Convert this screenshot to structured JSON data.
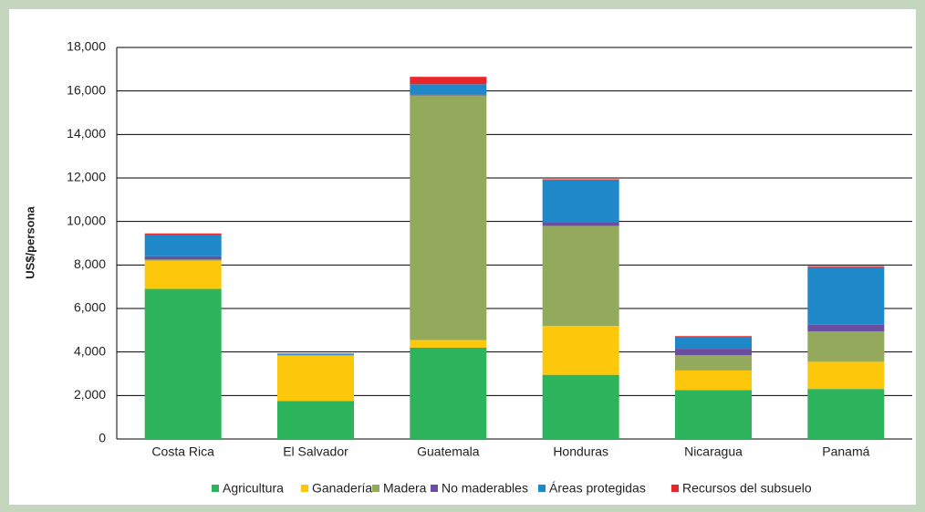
{
  "chart_data": {
    "type": "stacked_bar",
    "y_label": "US$/persona",
    "categories": [
      "Costa Rica",
      "El Salvador",
      "Guatemala",
      "Honduras",
      "Nicaragua",
      "Panamá"
    ],
    "series": [
      {
        "name": "Agricultura",
        "color": "#2db45c",
        "values": [
          6900,
          1750,
          4200,
          2950,
          2250,
          2300
        ]
      },
      {
        "name": "Ganadería",
        "color": "#fdc70b",
        "values": [
          1300,
          2100,
          350,
          2250,
          900,
          1250
        ]
      },
      {
        "name": "Madera",
        "color": "#93a95b",
        "values": [
          50,
          0,
          11250,
          4600,
          700,
          1400
        ]
      },
      {
        "name": "No maderables",
        "color": "#6a4ea0",
        "values": [
          150,
          20,
          50,
          170,
          300,
          300
        ]
      },
      {
        "name": "Áreas protegidas",
        "color": "#1e88c8",
        "values": [
          1000,
          60,
          460,
          1920,
          550,
          2650
        ]
      },
      {
        "name": "Recursos del subsuelo",
        "color": "#e8262b",
        "values": [
          50,
          0,
          340,
          50,
          30,
          50
        ]
      }
    ],
    "ylim": [
      0,
      18000
    ],
    "yticks": [
      0,
      {
        "value": 2000,
        "label": "2,000"
      },
      {
        "value": 4000,
        "label": "4,000"
      },
      {
        "value": 6000,
        "label": "6,000"
      },
      {
        "value": 8000,
        "label": "8,000"
      },
      {
        "value": 10000,
        "label": "10,000"
      },
      {
        "value": 12000,
        "label": "12,000"
      },
      {
        "value": 14000,
        "label": "14,000"
      },
      {
        "value": 16000,
        "label": "16,000"
      },
      {
        "value": 18000,
        "label": "18,000"
      }
    ],
    "grid": true,
    "legend": "bottom"
  }
}
